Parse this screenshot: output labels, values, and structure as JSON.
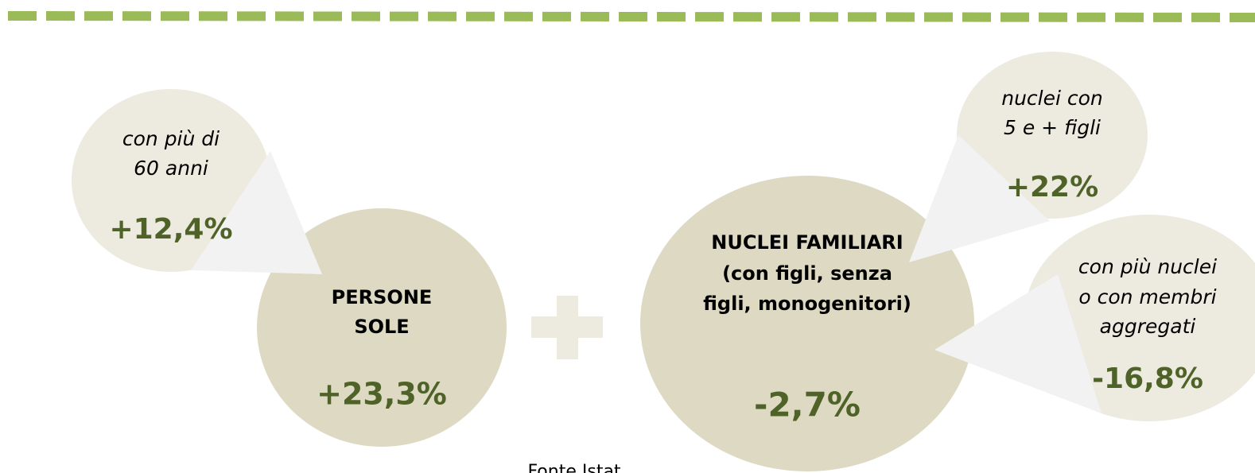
{
  "nodes": [
    {
      "lines": [
        "con più di",
        "60 anni"
      ],
      "value": "+12,4%"
    },
    {
      "lines": [
        "PERSONE",
        "SOLE"
      ],
      "value": "+23,3%"
    },
    {
      "lines": [
        "NUCLEI FAMILIARI",
        "(con figli, senza",
        "figli, monogenitori)"
      ],
      "value": "-2,7%"
    },
    {
      "lines": [
        "nuclei con",
        "5 e + figli"
      ],
      "value": "+22%"
    },
    {
      "lines": [
        "con più nuclei",
        "o con membri",
        "aggregati"
      ],
      "value": "-16,8%"
    }
  ],
  "footer": "Fonte Istat"
}
